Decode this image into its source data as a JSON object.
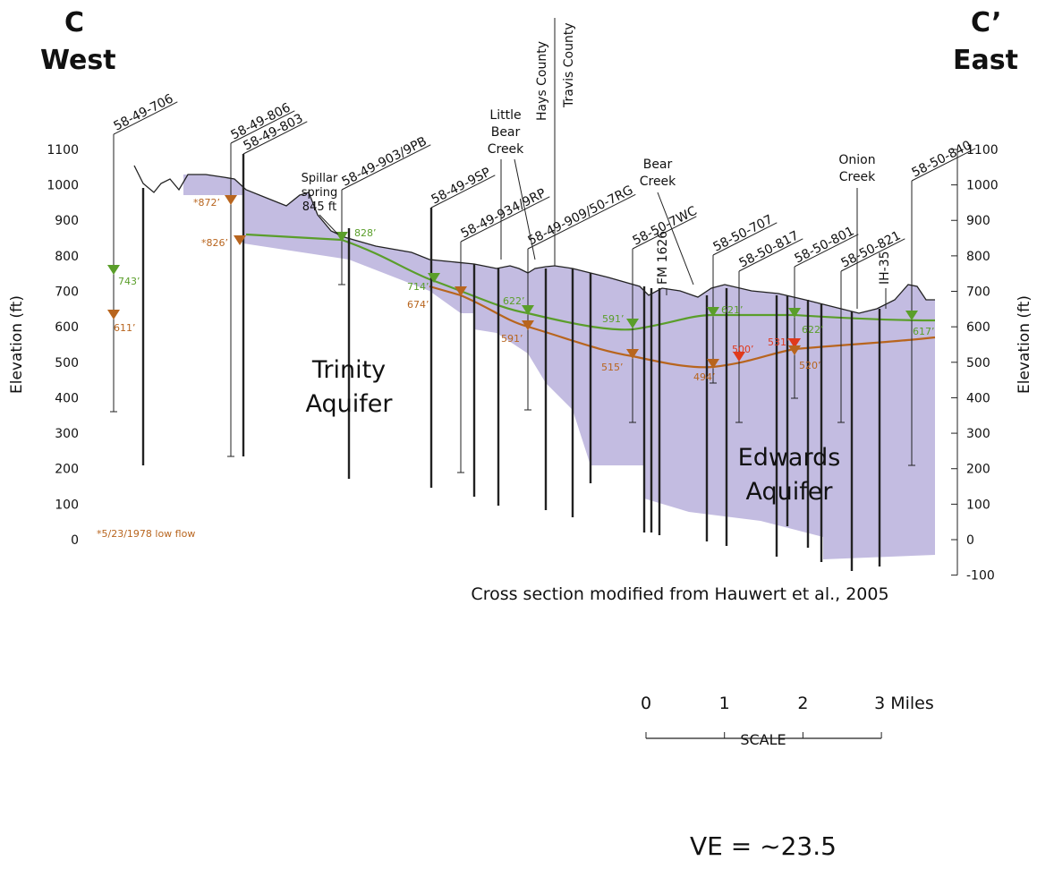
{
  "header": {
    "left_letter": "C",
    "left_dir": "West",
    "right_letter": "C’",
    "right_dir": "East"
  },
  "axes": {
    "label": "Elevation (ft)",
    "left_ticks": [
      1100,
      1000,
      900,
      800,
      700,
      600,
      500,
      400,
      300,
      200,
      100,
      0
    ],
    "right_ticks": [
      1100,
      1000,
      900,
      800,
      700,
      600,
      500,
      400,
      300,
      200,
      100,
      0,
      -100
    ]
  },
  "wells": [
    "58-49-706",
    "58-49-806",
    "58-49-803",
    "58-49-903/9PB",
    "58-49-9SP",
    "58-49-934/9RP",
    "58-49-909/50-7RG",
    "58-50-7WC",
    "58-50-707",
    "58-50-817",
    "58-50-801",
    "58-50-821",
    "58-50-840"
  ],
  "water_levels": [
    {
      "label": "743’",
      "color": "#5a9e2a"
    },
    {
      "label": "611’",
      "color": "#b8651e"
    },
    {
      "label": "*872’",
      "color": "#b8651e"
    },
    {
      "label": "*826’",
      "color": "#b8651e"
    },
    {
      "label": "828’",
      "color": "#5a9e2a"
    },
    {
      "label": "714’",
      "color": "#5a9e2a"
    },
    {
      "label": "674’",
      "color": "#b8651e"
    },
    {
      "label": "622’",
      "color": "#5a9e2a"
    },
    {
      "label": "591’",
      "color": "#b8651e"
    },
    {
      "label": "591’",
      "color": "#5a9e2a"
    },
    {
      "label": "515’",
      "color": "#b8651e"
    },
    {
      "label": "621’",
      "color": "#5a9e2a"
    },
    {
      "label": "494’",
      "color": "#b8651e"
    },
    {
      "label": "500’",
      "color": "#e0391c"
    },
    {
      "label": "531’",
      "color": "#e0391c"
    },
    {
      "label": "622’",
      "color": "#5a9e2a"
    },
    {
      "label": "520’",
      "color": "#b8651e"
    },
    {
      "label": "617’",
      "color": "#5a9e2a"
    }
  ],
  "features": {
    "spillar": [
      "Spillar",
      "spring",
      "845 ft"
    ],
    "little_bear": [
      "Little",
      "Bear",
      "Creek"
    ],
    "hays": "Hays County",
    "travis": "Travis County",
    "bear": [
      "Bear",
      "Creek"
    ],
    "fm": "FM 1626",
    "onion": [
      "Onion",
      "Creek"
    ],
    "ih": "IH-35",
    "trinity": [
      "Trinity",
      "Aquifer"
    ],
    "edwards": [
      "Edwards",
      "Aquifer"
    ],
    "footnote": "*5/23/1978 low flow",
    "source": "Cross section modified from Hauwert et al., 2005"
  },
  "scale": {
    "title": "SCALE",
    "ticks": [
      "0",
      "1",
      "2",
      "3 Miles"
    ],
    "ve": "VE = ~23.5"
  }
}
